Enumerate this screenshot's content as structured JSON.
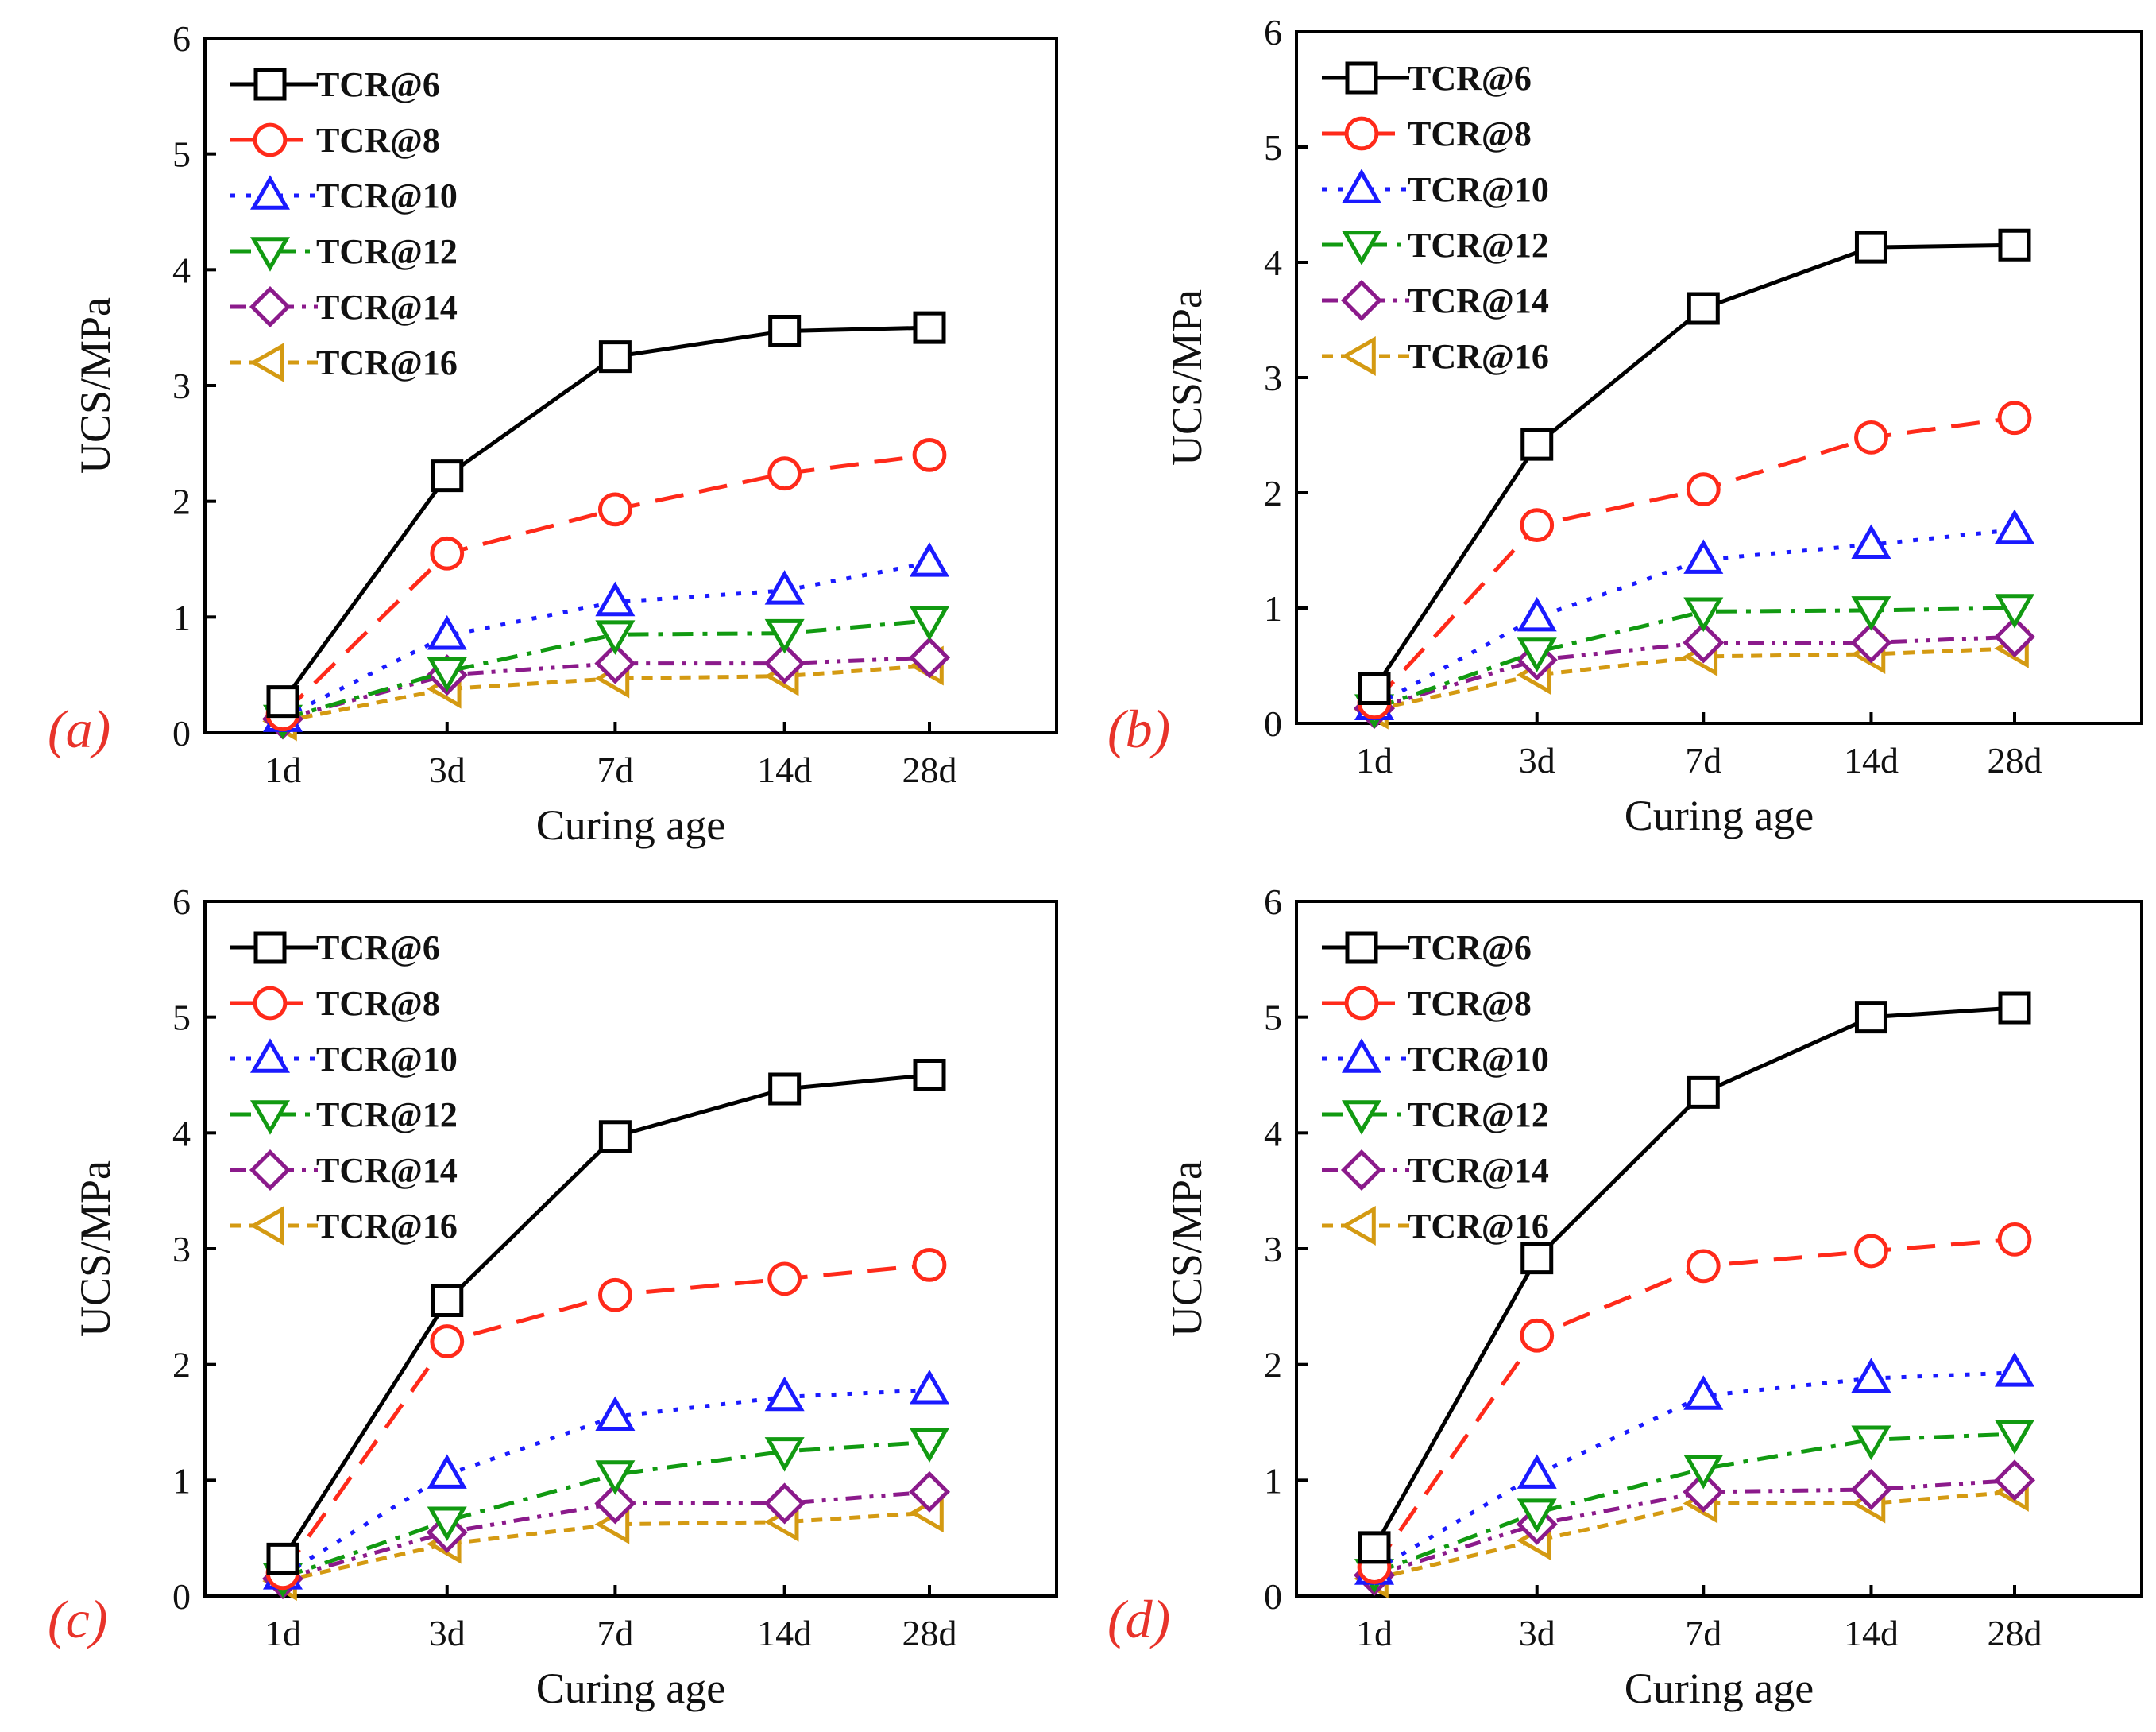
{
  "chart_data": [
    {
      "type": "line",
      "panel_label": "(a)",
      "xlabel": "Curing age",
      "ylabel": "UCS/MPa",
      "categories": [
        "1d",
        "3d",
        "7d",
        "14d",
        "28d"
      ],
      "ylim": [
        0,
        6
      ],
      "yticks": [
        "0",
        "1",
        "2",
        "3",
        "4",
        "5",
        "6"
      ],
      "legend_position": "top-left",
      "series": [
        {
          "name": "TCR@6",
          "values": [
            0.27,
            2.22,
            3.25,
            3.47,
            3.5
          ]
        },
        {
          "name": "TCR@8",
          "values": [
            0.16,
            1.55,
            1.93,
            2.24,
            2.4
          ]
        },
        {
          "name": "TCR@10",
          "values": [
            0.13,
            0.84,
            1.13,
            1.23,
            1.47
          ]
        },
        {
          "name": "TCR@12",
          "values": [
            0.12,
            0.53,
            0.85,
            0.86,
            0.97
          ]
        },
        {
          "name": "TCR@14",
          "values": [
            0.12,
            0.5,
            0.6,
            0.6,
            0.65
          ]
        },
        {
          "name": "TCR@16",
          "values": [
            0.1,
            0.38,
            0.47,
            0.49,
            0.58
          ]
        }
      ]
    },
    {
      "type": "line",
      "panel_label": "(b)",
      "xlabel": "Curing age",
      "ylabel": "UCS/MPa",
      "categories": [
        "1d",
        "3d",
        "7d",
        "14d",
        "28d"
      ],
      "ylim": [
        0,
        6
      ],
      "yticks": [
        "0",
        "1",
        "2",
        "3",
        "4",
        "5",
        "6"
      ],
      "legend_position": "top-left",
      "series": [
        {
          "name": "TCR@6",
          "values": [
            0.3,
            2.42,
            3.6,
            4.13,
            4.15
          ]
        },
        {
          "name": "TCR@8",
          "values": [
            0.18,
            1.72,
            2.03,
            2.48,
            2.65
          ]
        },
        {
          "name": "TCR@10",
          "values": [
            0.15,
            0.92,
            1.42,
            1.55,
            1.68
          ]
        },
        {
          "name": "TCR@12",
          "values": [
            0.13,
            0.62,
            0.97,
            0.98,
            1.0
          ]
        },
        {
          "name": "TCR@14",
          "values": [
            0.13,
            0.55,
            0.7,
            0.7,
            0.75
          ]
        },
        {
          "name": "TCR@16",
          "values": [
            0.12,
            0.42,
            0.58,
            0.6,
            0.65
          ]
        }
      ]
    },
    {
      "type": "line",
      "panel_label": "(c)",
      "xlabel": "Curing age",
      "ylabel": "UCS/MPa",
      "categories": [
        "1d",
        "3d",
        "7d",
        "14d",
        "28d"
      ],
      "ylim": [
        0,
        6
      ],
      "yticks": [
        "0",
        "1",
        "2",
        "3",
        "4",
        "5",
        "6"
      ],
      "legend_position": "top-left",
      "series": [
        {
          "name": "TCR@6",
          "values": [
            0.32,
            2.55,
            3.97,
            4.38,
            4.5
          ]
        },
        {
          "name": "TCR@8",
          "values": [
            0.2,
            2.2,
            2.6,
            2.74,
            2.86
          ]
        },
        {
          "name": "TCR@10",
          "values": [
            0.18,
            1.05,
            1.55,
            1.72,
            1.78
          ]
        },
        {
          "name": "TCR@12",
          "values": [
            0.16,
            0.65,
            1.05,
            1.25,
            1.33
          ]
        },
        {
          "name": "TCR@14",
          "values": [
            0.15,
            0.55,
            0.8,
            0.8,
            0.9
          ]
        },
        {
          "name": "TCR@16",
          "values": [
            0.13,
            0.45,
            0.62,
            0.64,
            0.72
          ]
        }
      ]
    },
    {
      "type": "line",
      "panel_label": "(d)",
      "xlabel": "Curing age",
      "ylabel": "UCS/MPa",
      "categories": [
        "1d",
        "3d",
        "7d",
        "14d",
        "28d"
      ],
      "ylim": [
        0,
        6
      ],
      "yticks": [
        "0",
        "1",
        "2",
        "3",
        "4",
        "5",
        "6"
      ],
      "legend_position": "top-left",
      "series": [
        {
          "name": "TCR@6",
          "values": [
            0.42,
            2.92,
            4.35,
            5.0,
            5.08
          ]
        },
        {
          "name": "TCR@8",
          "values": [
            0.25,
            2.25,
            2.85,
            2.98,
            3.08
          ]
        },
        {
          "name": "TCR@10",
          "values": [
            0.22,
            1.05,
            1.73,
            1.88,
            1.93
          ]
        },
        {
          "name": "TCR@12",
          "values": [
            0.2,
            0.72,
            1.1,
            1.35,
            1.4
          ]
        },
        {
          "name": "TCR@14",
          "values": [
            0.18,
            0.62,
            0.9,
            0.92,
            1.0
          ]
        },
        {
          "name": "TCR@16",
          "values": [
            0.15,
            0.48,
            0.8,
            0.8,
            0.9
          ]
        }
      ]
    }
  ],
  "series_styles": [
    {
      "name": "TCR@6",
      "color": "#000000",
      "marker": "square",
      "dash": "none"
    },
    {
      "name": "TCR@8",
      "color": "#ff2a1a",
      "marker": "circle",
      "dash": "long-dash"
    },
    {
      "name": "TCR@10",
      "color": "#1a1aff",
      "marker": "triangle-up",
      "dash": "dot"
    },
    {
      "name": "TCR@12",
      "color": "#119a11",
      "marker": "triangle-down",
      "dash": "dash-dot"
    },
    {
      "name": "TCR@14",
      "color": "#8b1a8b",
      "marker": "diamond",
      "dash": "dash-dot-dot"
    },
    {
      "name": "TCR@16",
      "color": "#d49a12",
      "marker": "triangle-left",
      "dash": "short-dash"
    }
  ]
}
